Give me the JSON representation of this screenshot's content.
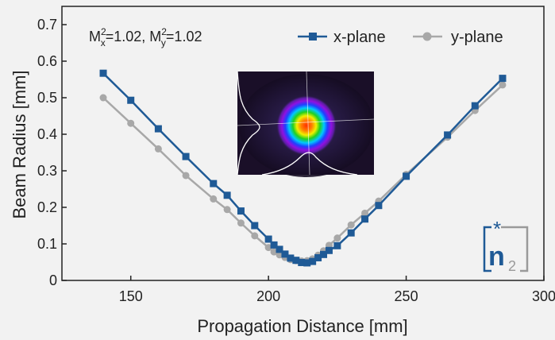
{
  "chart_data": {
    "type": "line",
    "xlabel": "Propagation Distance [mm]",
    "ylabel": "Beam Radius [mm]",
    "xlim": [
      125,
      300
    ],
    "ylim": [
      0,
      0.75
    ],
    "x_ticks": [
      "150",
      "200",
      "250",
      "300"
    ],
    "y_ticks": [
      "0",
      "0.1",
      "0.2",
      "0.3",
      "0.4",
      "0.5",
      "0.6",
      "0.7"
    ],
    "annotation": {
      "base": "M",
      "sup": "2",
      "x_sub": "x",
      "y_sub": "y",
      "x_value": "=1.02, ",
      "y_value": "=1.02"
    },
    "legend_position": "top-right",
    "grid": false,
    "series": [
      {
        "name": "x-plane",
        "color": "#1f5a96",
        "marker": "square",
        "x": [
          140,
          150,
          160,
          170,
          180,
          185,
          190,
          195,
          200,
          202,
          204,
          206,
          208,
          210,
          212,
          214,
          216,
          218,
          220,
          222,
          225,
          230,
          235,
          240,
          250,
          265,
          275,
          285
        ],
        "y": [
          0.567,
          0.493,
          0.415,
          0.339,
          0.265,
          0.233,
          0.19,
          0.15,
          0.113,
          0.097,
          0.085,
          0.072,
          0.061,
          0.055,
          0.049,
          0.048,
          0.052,
          0.062,
          0.071,
          0.082,
          0.095,
          0.13,
          0.168,
          0.205,
          0.285,
          0.398,
          0.478,
          0.553
        ]
      },
      {
        "name": "y-plane",
        "color": "#a8a8a8",
        "marker": "circle",
        "x": [
          140,
          150,
          160,
          170,
          180,
          185,
          190,
          195,
          200,
          202,
          204,
          206,
          208,
          210,
          212,
          214,
          216,
          218,
          220,
          222,
          225,
          230,
          235,
          240,
          250,
          265,
          275,
          285
        ],
        "y": [
          0.5,
          0.43,
          0.36,
          0.287,
          0.223,
          0.194,
          0.157,
          0.122,
          0.09,
          0.078,
          0.07,
          0.063,
          0.057,
          0.054,
          0.053,
          0.054,
          0.059,
          0.069,
          0.081,
          0.096,
          0.116,
          0.152,
          0.184,
          0.217,
          0.29,
          0.392,
          0.465,
          0.535
        ]
      }
    ]
  },
  "logo": {
    "text": "n",
    "subscript": "2",
    "star": "*"
  },
  "colors": {
    "background": "#f2f2f2",
    "axis": "#222222",
    "x_plane": "#1f5a96",
    "y_plane": "#a8a8a8",
    "logo_blue": "#1f5a96",
    "logo_gray": "#9a9a9a"
  }
}
